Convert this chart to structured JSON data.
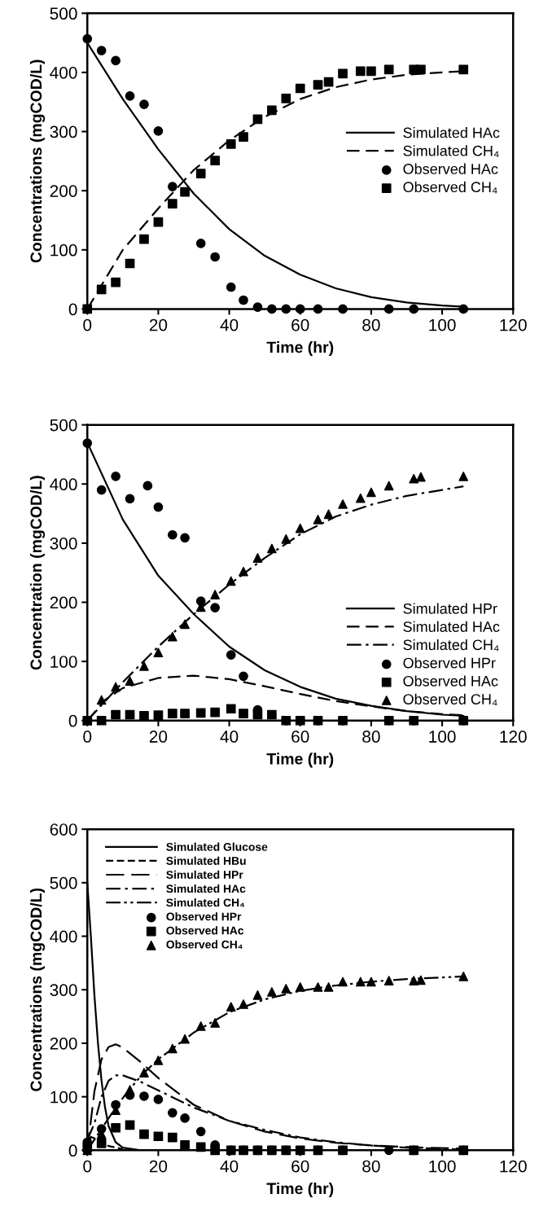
{
  "chart_data": [
    {
      "type": "line",
      "xlabel": "Time (hr)",
      "ylabel": "Concentrations (mgCOD/L)",
      "xlim": [
        0,
        120
      ],
      "xticks": [
        0,
        20,
        40,
        60,
        80,
        100,
        120
      ],
      "ylim": [
        0,
        500
      ],
      "yticks": [
        0,
        100,
        200,
        300,
        400,
        500
      ],
      "grid": false,
      "legend": "right",
      "series": [
        {
          "name": "Simulated HAc",
          "line_style": "solid",
          "color": "#000000",
          "x": [
            0,
            10,
            20,
            30,
            40,
            50,
            60,
            70,
            80,
            90,
            100,
            106
          ],
          "values": [
            450,
            355,
            270,
            195,
            135,
            90,
            58,
            35,
            20,
            11,
            6,
            4
          ]
        },
        {
          "name": "Simulated CH₄",
          "line_style": "dashed",
          "color": "#000000",
          "x": [
            0,
            10,
            20,
            30,
            40,
            50,
            60,
            70,
            80,
            90,
            100,
            106
          ],
          "values": [
            0,
            100,
            170,
            235,
            285,
            325,
            355,
            375,
            388,
            396,
            400,
            402
          ]
        },
        {
          "name": "Observed HAc",
          "type": "scatter",
          "marker": "circle",
          "color": "#000000",
          "x": [
            0,
            4,
            8,
            12,
            16,
            20,
            24,
            32,
            36,
            40.5,
            44,
            48,
            52,
            56,
            60,
            65,
            72,
            85,
            92,
            106
          ],
          "values": [
            457,
            437,
            420,
            360,
            346,
            301,
            207,
            111,
            88,
            37,
            15,
            3,
            0,
            0,
            0,
            0,
            0,
            0,
            0,
            0
          ]
        },
        {
          "name": "Observed CH₄",
          "type": "scatter",
          "marker": "square",
          "color": "#000000",
          "x": [
            0,
            4,
            8,
            12,
            16,
            20,
            24,
            27.5,
            32,
            36,
            40.5,
            44,
            48,
            52,
            56,
            60,
            65,
            68,
            72,
            77,
            80,
            85,
            92,
            94,
            106
          ],
          "values": [
            0,
            33,
            45,
            77,
            118,
            147,
            178,
            198,
            229,
            251,
            279,
            291,
            321,
            336,
            356,
            373,
            379,
            384,
            398,
            402,
            402,
            405,
            405,
            405,
            405
          ]
        }
      ]
    },
    {
      "type": "line",
      "xlabel": "Time (hr)",
      "ylabel": "Concentration (mgCOD/L)",
      "xlim": [
        0,
        120
      ],
      "xticks": [
        0,
        20,
        40,
        60,
        80,
        100,
        120
      ],
      "ylim": [
        0,
        500
      ],
      "yticks": [
        0,
        100,
        200,
        300,
        400,
        500
      ],
      "grid": false,
      "legend": "bottom right",
      "series": [
        {
          "name": "Simulated HPr",
          "line_style": "solid",
          "color": "#000000",
          "x": [
            0,
            10,
            20,
            30,
            40,
            50,
            60,
            70,
            80,
            90,
            100,
            106
          ],
          "values": [
            470,
            340,
            245,
            180,
            125,
            85,
            57,
            37,
            25,
            16,
            10,
            8
          ]
        },
        {
          "name": "Simulated HAc",
          "line_style": "dashed",
          "color": "#000000",
          "x": [
            0,
            5,
            10,
            20,
            30,
            40,
            50,
            60,
            70,
            80,
            90,
            100,
            106
          ],
          "values": [
            0,
            35,
            55,
            72,
            76,
            70,
            58,
            45,
            33,
            24,
            16,
            11,
            9
          ]
        },
        {
          "name": "Simulated CH₄",
          "line_style": "dashdot",
          "color": "#000000",
          "x": [
            0,
            10,
            20,
            30,
            40,
            50,
            60,
            70,
            80,
            90,
            100,
            106
          ],
          "values": [
            0,
            65,
            125,
            180,
            230,
            275,
            315,
            345,
            365,
            380,
            390,
            396
          ]
        },
        {
          "name": "Observed HPr",
          "type": "scatter",
          "marker": "circle",
          "color": "#000000",
          "x": [
            0,
            4,
            8,
            12,
            17,
            20,
            24,
            27.5,
            32,
            36,
            40.5,
            44,
            48,
            56,
            60,
            65,
            72,
            85,
            92,
            106
          ],
          "values": [
            469,
            390,
            413,
            375,
            397,
            361,
            314,
            309,
            202,
            191,
            111,
            75,
            18,
            0,
            0,
            0,
            0,
            0,
            0,
            0
          ]
        },
        {
          "name": "Observed HAc",
          "type": "scatter",
          "marker": "square",
          "color": "#000000",
          "x": [
            0,
            4,
            8,
            12,
            16,
            20,
            24,
            27.5,
            32,
            36,
            40.5,
            44,
            48,
            52,
            56,
            60,
            65,
            72,
            85,
            92,
            106
          ],
          "values": [
            0,
            0,
            10,
            10,
            8,
            9,
            12,
            12,
            13,
            14,
            20,
            12,
            10,
            10,
            0,
            0,
            0,
            0,
            0,
            0,
            0
          ]
        },
        {
          "name": "Observed CH₄",
          "type": "scatter",
          "marker": "triangle",
          "color": "#000000",
          "x": [
            0,
            4,
            8,
            12,
            16,
            20,
            24,
            27.5,
            32,
            36,
            40.5,
            44,
            48,
            52,
            56,
            60,
            65,
            68,
            72,
            77,
            80,
            85,
            92,
            94,
            106
          ],
          "values": [
            0,
            35,
            57,
            67,
            92,
            115,
            142,
            163,
            192,
            213,
            236,
            252,
            275,
            291,
            307,
            325,
            340,
            349,
            366,
            376,
            386,
            397,
            409,
            412,
            413
          ]
        }
      ]
    },
    {
      "type": "line",
      "xlabel": "Time (hr)",
      "ylabel": "Concentrations (mgCOD/L)",
      "xlim": [
        0,
        120
      ],
      "xticks": [
        0,
        20,
        40,
        60,
        80,
        100,
        120
      ],
      "ylim": [
        0,
        600
      ],
      "yticks": [
        0,
        100,
        200,
        300,
        400,
        500,
        600
      ],
      "grid": false,
      "legend": "top left",
      "series": [
        {
          "name": "Simulated Glucose",
          "line_style": "solid",
          "color": "#000000",
          "x": [
            0,
            1,
            2,
            3,
            4,
            5,
            6,
            8,
            10,
            15,
            20,
            106
          ],
          "values": [
            500,
            400,
            290,
            200,
            130,
            80,
            45,
            15,
            5,
            0,
            0,
            0
          ]
        },
        {
          "name": "Simulated HBu",
          "line_style": "shortdash",
          "color": "#000000",
          "x": [
            0,
            1,
            3,
            6,
            10
          ],
          "values": [
            0,
            25,
            20,
            8,
            2
          ]
        },
        {
          "name": "Simulated HPr",
          "line_style": "longdash",
          "color": "#000000",
          "x": [
            0,
            2,
            4,
            6,
            8,
            10,
            15,
            20,
            30,
            40,
            50,
            60,
            70,
            80,
            90,
            100,
            106
          ],
          "values": [
            0,
            110,
            170,
            193,
            198,
            192,
            165,
            135,
            85,
            55,
            35,
            22,
            14,
            9,
            6,
            4,
            3
          ]
        },
        {
          "name": "Simulated HAc",
          "line_style": "dashdot",
          "color": "#000000",
          "x": [
            0,
            2,
            4,
            6,
            8,
            10,
            15,
            20,
            30,
            40,
            50,
            60,
            70,
            80,
            90,
            100,
            106
          ],
          "values": [
            20,
            50,
            100,
            130,
            140,
            140,
            128,
            112,
            80,
            55,
            38,
            24,
            15,
            9,
            5,
            3,
            1
          ]
        },
        {
          "name": "Simulated CH₄",
          "line_style": "dashdotdot",
          "color": "#000000",
          "x": [
            0,
            4,
            8,
            12,
            16,
            20,
            30,
            40,
            50,
            60,
            70,
            80,
            90,
            100,
            106
          ],
          "values": [
            0,
            40,
            80,
            115,
            145,
            170,
            220,
            258,
            282,
            298,
            308,
            315,
            320,
            323,
            325
          ]
        },
        {
          "name": "Observed HPr",
          "type": "scatter",
          "marker": "circle",
          "color": "#000000",
          "x": [
            0,
            4,
            8,
            12,
            16,
            20,
            24,
            27.5,
            32,
            36,
            40.5,
            44,
            48,
            52,
            56,
            65,
            72,
            85,
            92,
            106
          ],
          "values": [
            15,
            40,
            85,
            103,
            101,
            95,
            70,
            60,
            35,
            10,
            0,
            0,
            0,
            0,
            0,
            0,
            0,
            0,
            0,
            0
          ]
        },
        {
          "name": "Observed HAc",
          "type": "scatter",
          "marker": "square",
          "color": "#000000",
          "x": [
            0,
            4,
            8,
            12,
            16,
            20,
            24,
            27.5,
            32,
            36,
            40.5,
            44,
            48,
            52,
            56,
            60,
            65,
            72,
            92,
            106
          ],
          "values": [
            5,
            13,
            42,
            47,
            30,
            26,
            24,
            10,
            6,
            0,
            0,
            0,
            0,
            0,
            0,
            0,
            0,
            0,
            0,
            0
          ]
        },
        {
          "name": "Observed CH₄",
          "type": "scatter",
          "marker": "triangle",
          "color": "#000000",
          "x": [
            0,
            4,
            8,
            12,
            16,
            20,
            24,
            27.5,
            32,
            36,
            40.5,
            44,
            48,
            52,
            56,
            60,
            65,
            68,
            72,
            77,
            80,
            85,
            92,
            94,
            106
          ],
          "values": [
            0,
            30,
            75,
            113,
            145,
            168,
            190,
            208,
            232,
            238,
            268,
            273,
            290,
            296,
            302,
            305,
            305,
            305,
            315,
            315,
            315,
            317,
            317,
            318,
            325
          ]
        }
      ]
    }
  ]
}
